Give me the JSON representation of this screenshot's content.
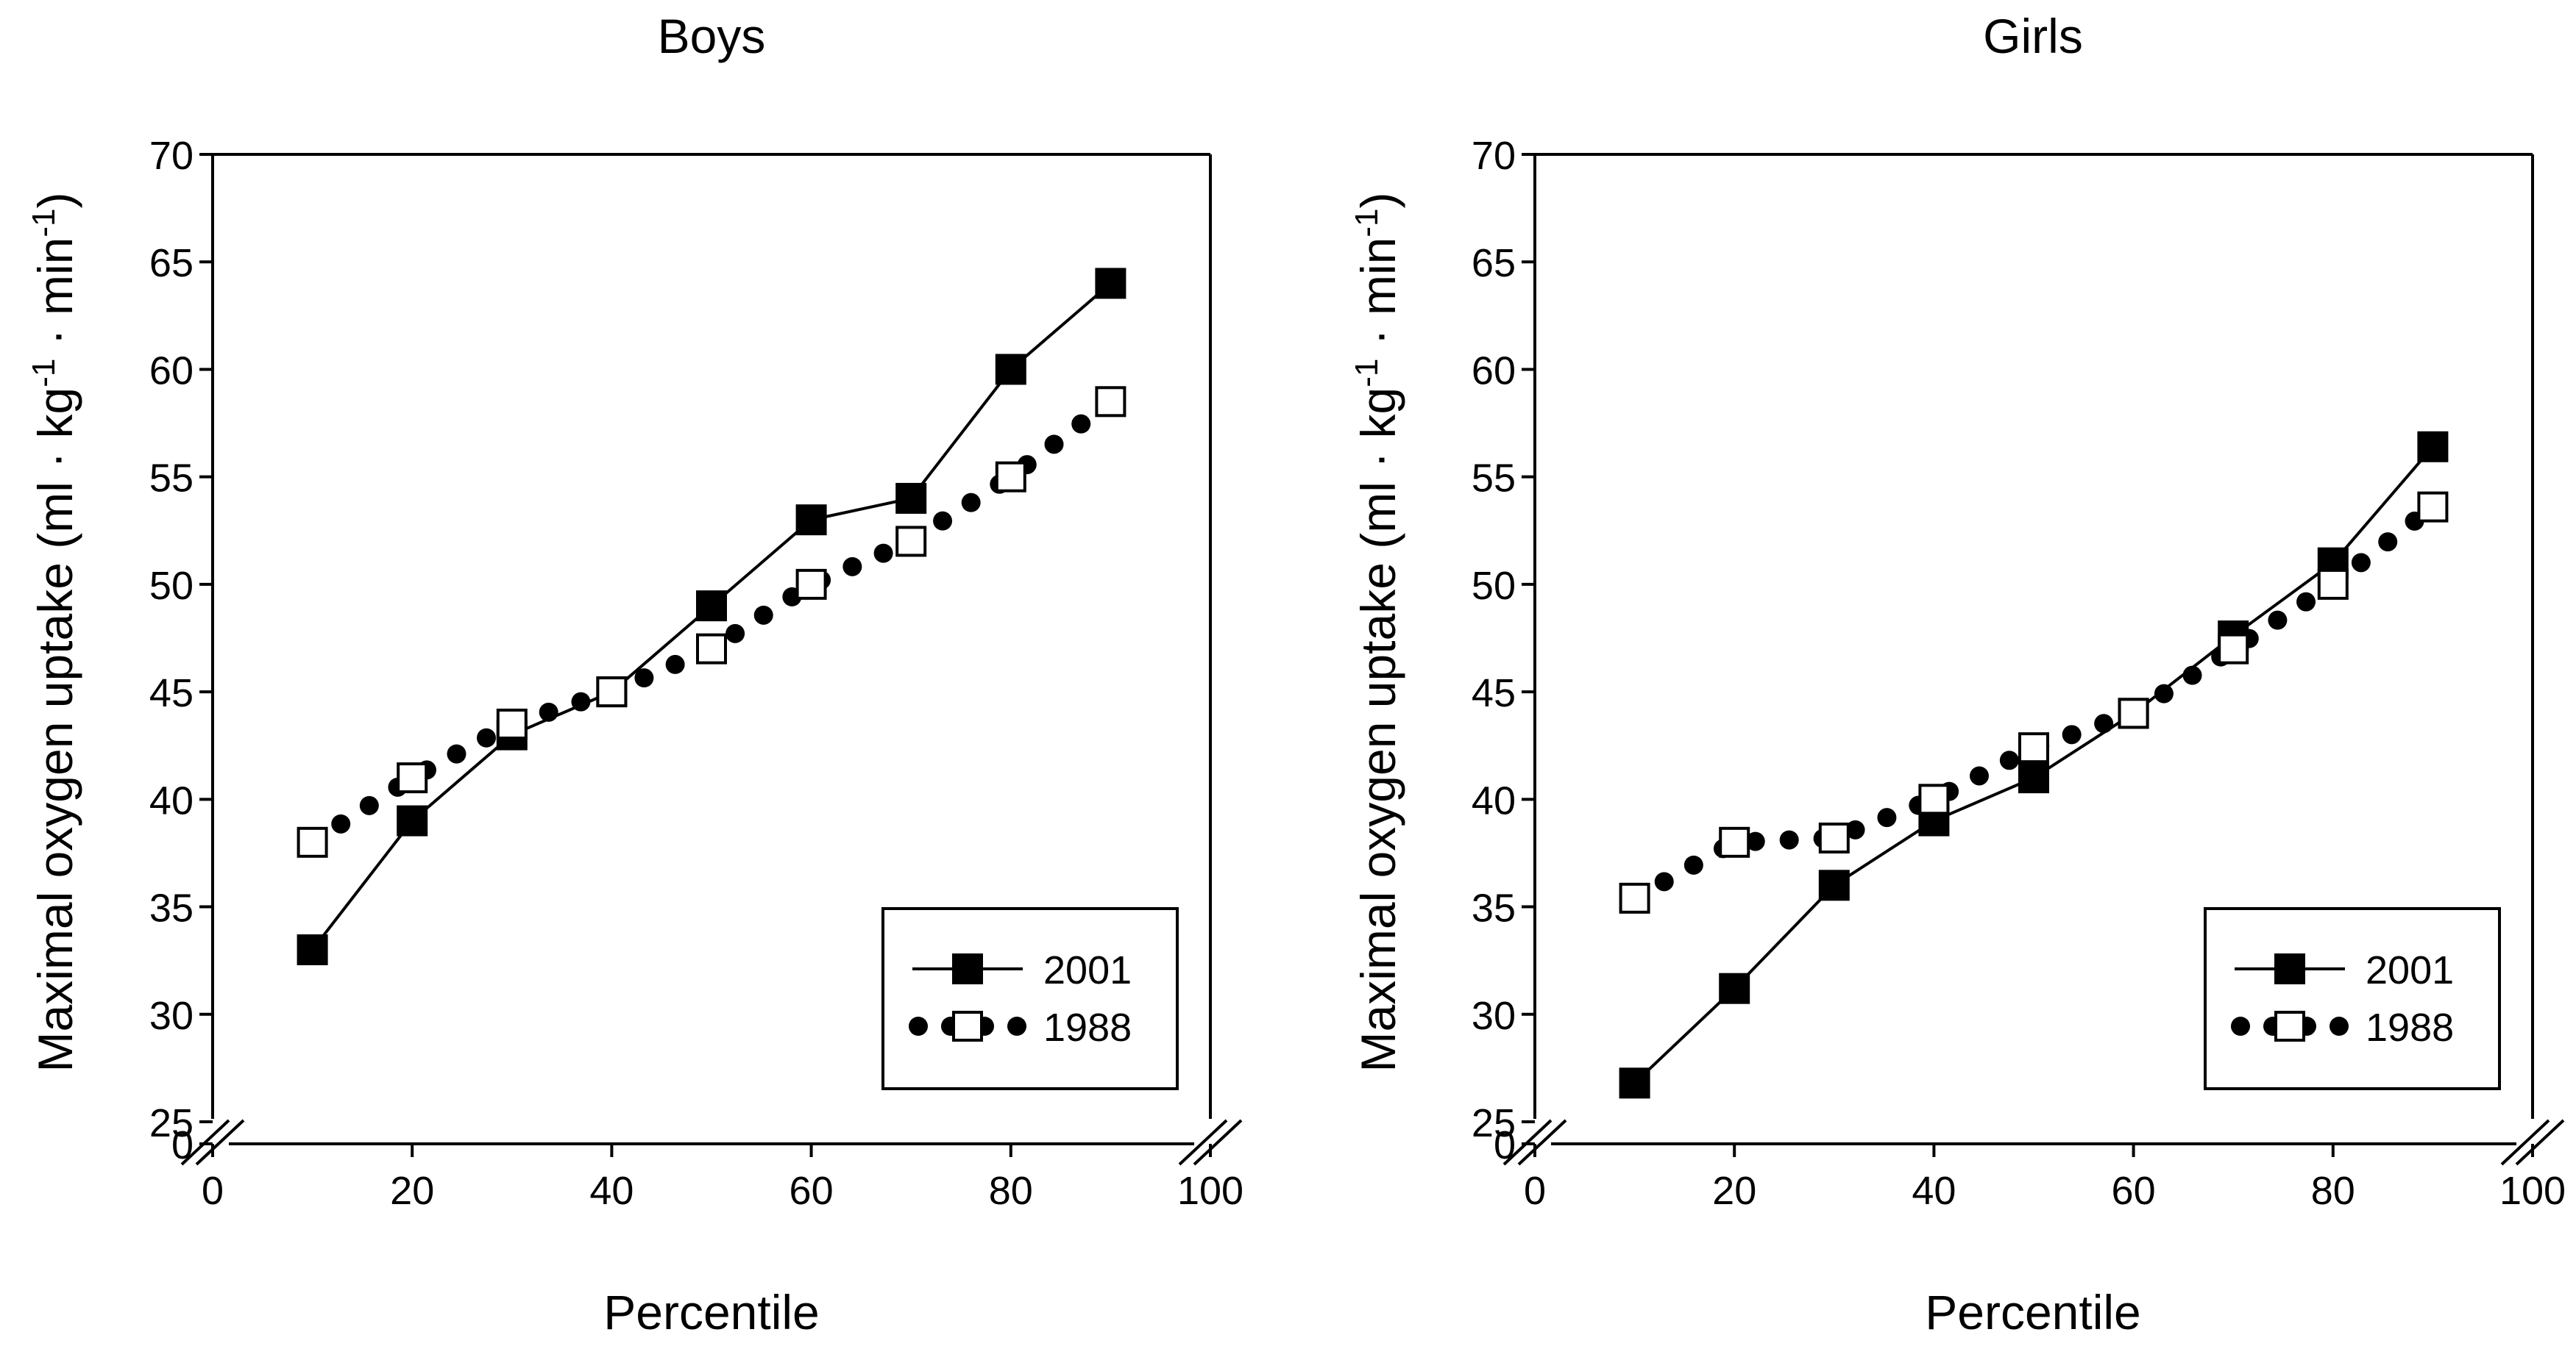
{
  "chart_data": [
    {
      "type": "line",
      "title": "Boys",
      "xlabel": "Percentile",
      "ylabel_main": "Maximal oxygen uptake (ml · kg",
      "ylabel_sup1": "-1",
      "ylabel_mid": " · min",
      "ylabel_sup2": "-1",
      "ylabel_end": ")",
      "xlim": [
        0,
        100
      ],
      "ylim": [
        25,
        70
      ],
      "x_ticks": [
        0,
        20,
        40,
        60,
        80,
        100
      ],
      "y_ticks": [
        25,
        30,
        35,
        40,
        45,
        50,
        55,
        60,
        65,
        70
      ],
      "y_zero_label": "0",
      "axis_break": true,
      "legend_position": "lower-right",
      "series": [
        {
          "name": "2001",
          "style": "solid-line-filled-square",
          "color": "#000000",
          "x": [
            10,
            20,
            30,
            40,
            50,
            60,
            70,
            80,
            90
          ],
          "y": [
            33,
            39,
            43,
            45,
            49,
            53,
            54,
            60,
            64
          ]
        },
        {
          "name": "1988",
          "style": "dotted-line-open-square",
          "color": "#000000",
          "x": [
            10,
            20,
            30,
            40,
            50,
            60,
            70,
            80,
            90
          ],
          "y": [
            38,
            41,
            43.5,
            45,
            47,
            50,
            52,
            55,
            58.5
          ]
        }
      ]
    },
    {
      "type": "line",
      "title": "Girls",
      "xlabel": "Percentile",
      "ylabel_main": "Maximal oxygen uptake (ml · kg",
      "ylabel_sup1": "-1",
      "ylabel_mid": " · min",
      "ylabel_sup2": "-1",
      "ylabel_end": ")",
      "xlim": [
        0,
        100
      ],
      "ylim": [
        25,
        70
      ],
      "x_ticks": [
        0,
        20,
        40,
        60,
        80,
        100
      ],
      "y_ticks": [
        25,
        30,
        35,
        40,
        45,
        50,
        55,
        60,
        65,
        70
      ],
      "y_zero_label": "0",
      "axis_break": true,
      "legend_position": "lower-right",
      "series": [
        {
          "name": "2001",
          "style": "solid-line-filled-square",
          "color": "#000000",
          "x": [
            10,
            20,
            30,
            40,
            50,
            60,
            70,
            80,
            90
          ],
          "y": [
            26.8,
            31.2,
            36,
            39,
            41,
            44,
            47.6,
            51,
            56.4
          ]
        },
        {
          "name": "1988",
          "style": "dotted-line-open-square",
          "color": "#000000",
          "x": [
            10,
            20,
            30,
            40,
            50,
            60,
            70,
            80,
            90
          ],
          "y": [
            35.4,
            38,
            38.2,
            40,
            42.4,
            44,
            47,
            50,
            53.6
          ]
        }
      ]
    }
  ]
}
